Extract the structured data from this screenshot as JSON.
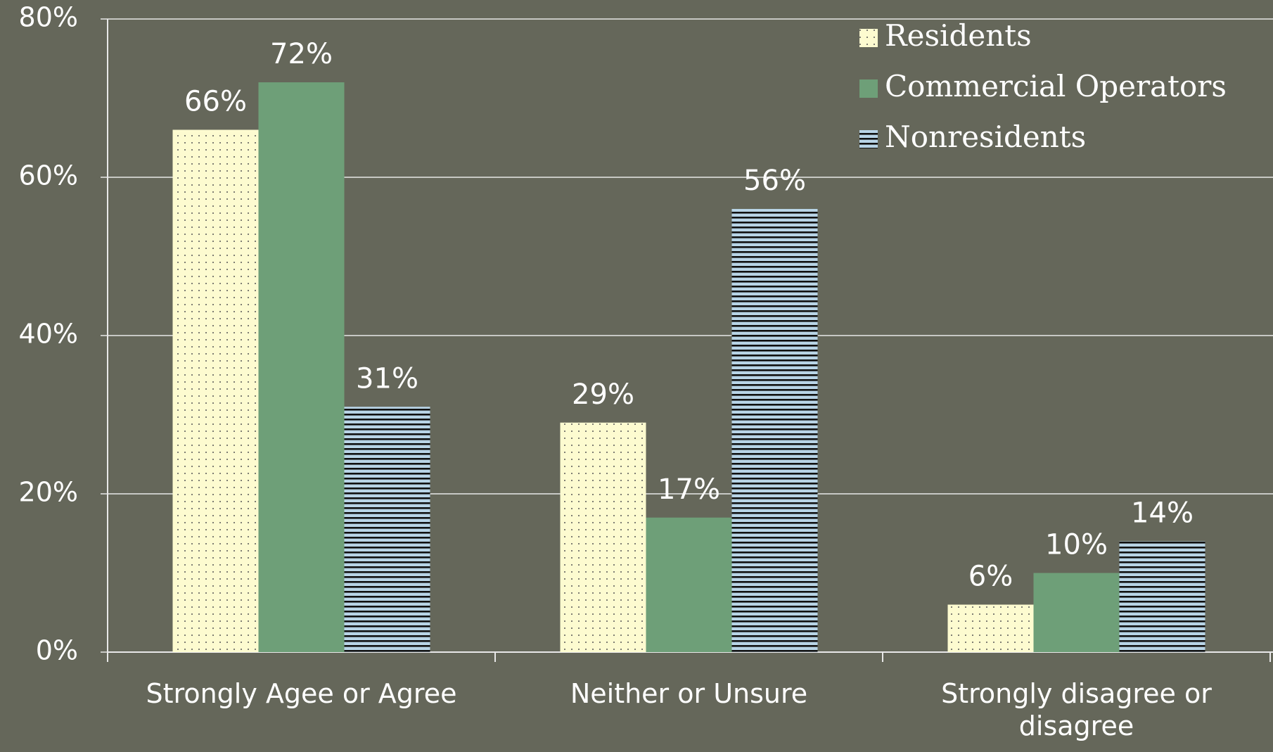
{
  "chart_data": {
    "type": "bar",
    "categories": [
      "Strongly Agee or Agree",
      "Neither or Unsure",
      "Strongly disagree or disagree"
    ],
    "series": [
      {
        "name": "Residents",
        "color": "#fdfbd0",
        "pattern": "dots",
        "values": [
          66,
          29,
          6
        ],
        "value_labels": [
          "66%",
          "29%",
          "6%"
        ]
      },
      {
        "name": "Commercial Operators",
        "color": "#6e9f78",
        "pattern": "solid",
        "values": [
          72,
          17,
          10
        ],
        "value_labels": [
          "72%",
          "17%",
          "10%"
        ]
      },
      {
        "name": "Nonresidents",
        "color": "#b8d4e6",
        "pattern": "stripes",
        "values": [
          31,
          56,
          14
        ],
        "value_labels": [
          "31%",
          "56%",
          "14%"
        ]
      }
    ],
    "ylim": [
      0,
      80
    ],
    "yticks": [
      {
        "value": 0,
        "label": "0%"
      },
      {
        "value": 20,
        "label": "20%"
      },
      {
        "value": 40,
        "label": "40%"
      },
      {
        "value": 60,
        "label": "60%"
      },
      {
        "value": 80,
        "label": "80%"
      }
    ],
    "grid": true,
    "legend": "top-right"
  }
}
